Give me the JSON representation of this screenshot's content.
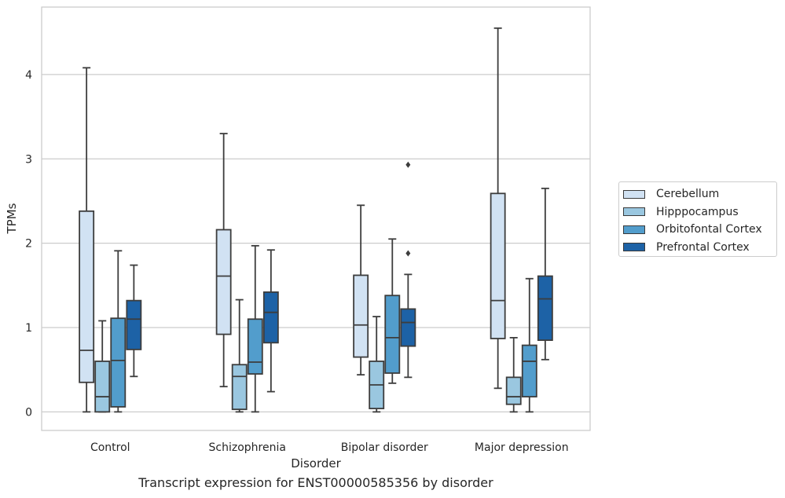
{
  "chart_data": {
    "type": "box",
    "title": "Transcript expression for ENST00000585356 by disorder",
    "xlabel": "Disorder",
    "ylabel": "TPMs",
    "ylim": [
      -0.22,
      4.8
    ],
    "yticks": [
      "0",
      "1",
      "2",
      "3",
      "4"
    ],
    "categories": [
      "Control",
      "Schizophrenia",
      "Bipolar disorder",
      "Major depression"
    ],
    "grid": true,
    "legend_position": "right",
    "series": [
      {
        "name": "Cerebellum",
        "color": "#d1e2f3",
        "boxes": [
          {
            "whisker_low": 0.0,
            "q1": 0.35,
            "median": 0.73,
            "q3": 2.38,
            "whisker_high": 4.08,
            "outliers": []
          },
          {
            "whisker_low": 0.3,
            "q1": 0.92,
            "median": 1.61,
            "q3": 2.16,
            "whisker_high": 3.3,
            "outliers": []
          },
          {
            "whisker_low": 0.44,
            "q1": 0.65,
            "median": 1.03,
            "q3": 1.62,
            "whisker_high": 2.45,
            "outliers": []
          },
          {
            "whisker_low": 0.28,
            "q1": 0.87,
            "median": 1.32,
            "q3": 2.59,
            "whisker_high": 4.55,
            "outliers": []
          }
        ]
      },
      {
        "name": "Hipppocampus",
        "color": "#9ac7e0",
        "boxes": [
          {
            "whisker_low": 0.0,
            "q1": 0.0,
            "median": 0.18,
            "q3": 0.6,
            "whisker_high": 1.08,
            "outliers": []
          },
          {
            "whisker_low": 0.0,
            "q1": 0.03,
            "median": 0.42,
            "q3": 0.56,
            "whisker_high": 1.33,
            "outliers": []
          },
          {
            "whisker_low": 0.0,
            "q1": 0.04,
            "median": 0.32,
            "q3": 0.6,
            "whisker_high": 1.13,
            "outliers": []
          },
          {
            "whisker_low": 0.0,
            "q1": 0.09,
            "median": 0.18,
            "q3": 0.41,
            "whisker_high": 0.88,
            "outliers": []
          }
        ]
      },
      {
        "name": "Orbitofontal Cortex",
        "color": "#529dcc",
        "boxes": [
          {
            "whisker_low": 0.0,
            "q1": 0.06,
            "median": 0.61,
            "q3": 1.11,
            "whisker_high": 1.91,
            "outliers": []
          },
          {
            "whisker_low": 0.0,
            "q1": 0.45,
            "median": 0.59,
            "q3": 1.1,
            "whisker_high": 1.97,
            "outliers": []
          },
          {
            "whisker_low": 0.34,
            "q1": 0.46,
            "median": 0.88,
            "q3": 1.38,
            "whisker_high": 2.05,
            "outliers": []
          },
          {
            "whisker_low": 0.0,
            "q1": 0.18,
            "median": 0.6,
            "q3": 0.79,
            "whisker_high": 1.58,
            "outliers": []
          }
        ]
      },
      {
        "name": "Prefrontal Cortex",
        "color": "#1d62a6",
        "boxes": [
          {
            "whisker_low": 0.42,
            "q1": 0.74,
            "median": 1.1,
            "q3": 1.32,
            "whisker_high": 1.74,
            "outliers": []
          },
          {
            "whisker_low": 0.24,
            "q1": 0.82,
            "median": 1.18,
            "q3": 1.42,
            "whisker_high": 1.92,
            "outliers": []
          },
          {
            "whisker_low": 0.41,
            "q1": 0.78,
            "median": 1.06,
            "q3": 1.22,
            "whisker_high": 1.63,
            "outliers": [
              1.88,
              2.93
            ]
          },
          {
            "whisker_low": 0.62,
            "q1": 0.85,
            "median": 1.34,
            "q3": 1.61,
            "whisker_high": 2.65,
            "outliers": []
          }
        ]
      }
    ]
  }
}
